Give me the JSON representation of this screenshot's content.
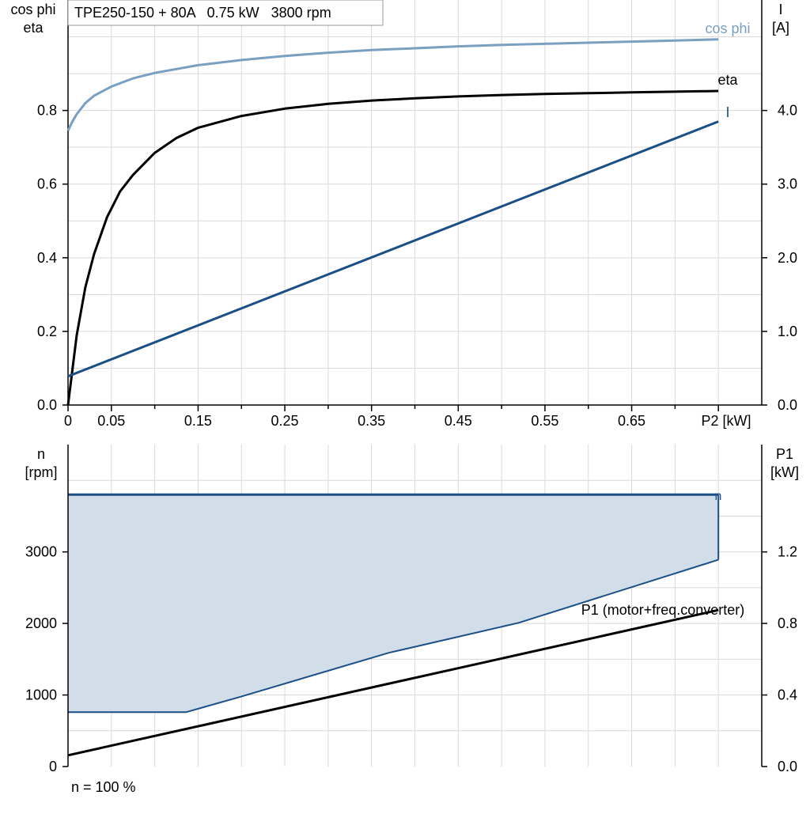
{
  "colors": {
    "cos_phi": "#7a9fc0",
    "eta": "#000000",
    "current": "#1b4f86",
    "n_area_fill": "#d1dde8",
    "n_line": "#1b4f86",
    "p1": "#000000",
    "grid": "#d9d9d9"
  },
  "chart_data": [
    {
      "type": "line",
      "title": "TPE250-150 + 80A   0.75 kW   3800 rpm",
      "xlabel": "P2 [kW]",
      "ylabel_left": [
        "cos phi",
        "eta"
      ],
      "ylabel_right": [
        "I",
        "[A]"
      ],
      "xlim": [
        0,
        0.8
      ],
      "ylim_left": [
        0,
        1.1
      ],
      "ylim_right": [
        0,
        5.5
      ],
      "x_ticks": [
        0,
        0.05,
        0.15,
        0.25,
        0.35,
        0.45,
        0.55,
        0.65
      ],
      "x_tick_labels": [
        "0",
        "0.05",
        "0.15",
        "0.25",
        "0.35",
        "0.45",
        "0.55",
        "0.65"
      ],
      "y_left_ticks": [
        0,
        0.2,
        0.4,
        0.6,
        0.8
      ],
      "y_left_tick_labels": [
        "0.0",
        "0.2",
        "0.4",
        "0.6",
        "0.8"
      ],
      "y_right_ticks": [
        0,
        1,
        2,
        3,
        4
      ],
      "y_right_tick_labels": [
        "0.0",
        "1.0",
        "2.0",
        "3.0",
        "4.0"
      ],
      "grid": true,
      "series": [
        {
          "name": "cos phi",
          "axis": "left",
          "x": [
            0,
            0.005,
            0.01,
            0.02,
            0.03,
            0.05,
            0.075,
            0.1,
            0.15,
            0.2,
            0.25,
            0.3,
            0.35,
            0.4,
            0.45,
            0.5,
            0.55,
            0.6,
            0.65,
            0.7,
            0.75
          ],
          "y": [
            0.745,
            0.77,
            0.79,
            0.82,
            0.84,
            0.865,
            0.887,
            0.902,
            0.923,
            0.937,
            0.948,
            0.957,
            0.964,
            0.969,
            0.974,
            0.978,
            0.981,
            0.984,
            0.987,
            0.99,
            0.993
          ]
        },
        {
          "name": "eta",
          "axis": "left",
          "x": [
            0,
            0.01,
            0.02,
            0.03,
            0.045,
            0.06,
            0.075,
            0.1,
            0.125,
            0.15,
            0.2,
            0.25,
            0.3,
            0.35,
            0.4,
            0.45,
            0.5,
            0.55,
            0.6,
            0.65,
            0.7,
            0.75
          ],
          "y": [
            0,
            0.19,
            0.32,
            0.41,
            0.51,
            0.58,
            0.625,
            0.685,
            0.725,
            0.753,
            0.785,
            0.805,
            0.818,
            0.827,
            0.833,
            0.838,
            0.842,
            0.845,
            0.847,
            0.849,
            0.851,
            0.853
          ]
        },
        {
          "name": "I",
          "axis": "right",
          "x": [
            0,
            0.75
          ],
          "y": [
            0.39,
            3.85
          ]
        }
      ]
    },
    {
      "type": "area",
      "xlabel": "",
      "ylabel_left": [
        "n",
        "[rpm]"
      ],
      "ylabel_right": [
        "P1",
        "[kW]"
      ],
      "xlim": [
        0,
        0.8
      ],
      "ylim_left": [
        0,
        4500
      ],
      "ylim_right": [
        0,
        1.8
      ],
      "y_left_ticks": [
        0,
        1000,
        2000,
        3000
      ],
      "y_left_tick_labels": [
        "0",
        "1000",
        "2000",
        "3000"
      ],
      "y_right_ticks": [
        0,
        0.4,
        0.8,
        1.2
      ],
      "y_right_tick_labels": [
        "0.0",
        "0.4",
        "0.8",
        "1.2"
      ],
      "grid": true,
      "series": [
        {
          "name": "n",
          "axis": "left",
          "x": [
            0,
            0.136,
            0.2,
            0.37,
            0.52,
            0.75
          ],
          "y_min": [
            760,
            760,
            980,
            1590,
            2010,
            2890
          ],
          "y_max": [
            3800,
            3800,
            3800,
            3800,
            3800,
            3800
          ]
        },
        {
          "name": "P1 (motor+freq.converter)",
          "axis": "right",
          "x": [
            0,
            0.75
          ],
          "y": [
            0.063,
            0.875
          ]
        }
      ],
      "footnote": "n = 100 %"
    }
  ]
}
